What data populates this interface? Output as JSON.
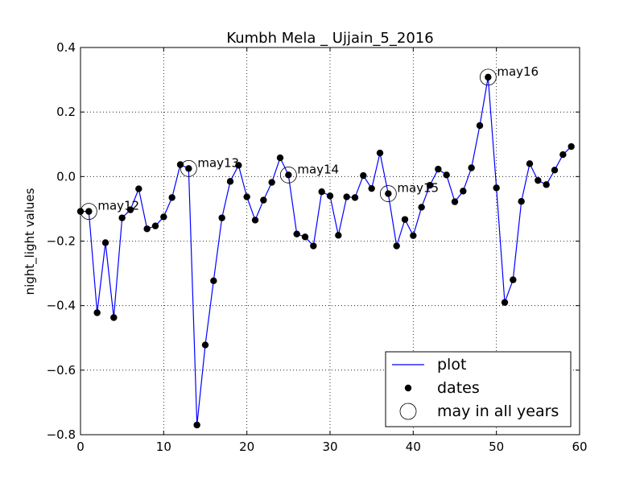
{
  "chart_data": {
    "type": "line",
    "title": "Kumbh Mela _ Ujjain_5_2016",
    "xlabel": "",
    "ylabel": "night_light values",
    "xlim": [
      0,
      60
    ],
    "ylim": [
      -0.8,
      0.4
    ],
    "xticks": [
      0,
      10,
      20,
      30,
      40,
      50,
      60
    ],
    "xtick_labels": [
      "0",
      "10",
      "20",
      "30",
      "40",
      "50",
      "60"
    ],
    "yticks": [
      -0.8,
      -0.6,
      -0.4,
      -0.2,
      0.0,
      0.2,
      0.4
    ],
    "ytick_labels": [
      "−0.8",
      "−0.6",
      "−0.4",
      "−0.2",
      "0.0",
      "0.2",
      "0.4"
    ],
    "grid": true,
    "grid_style": "dotted",
    "series": [
      {
        "name": "plot",
        "color": "#0000ff",
        "x": [
          0,
          1,
          2,
          3,
          4,
          5,
          6,
          7,
          8,
          9,
          10,
          11,
          12,
          13,
          14,
          15,
          16,
          17,
          18,
          19,
          20,
          21,
          22,
          23,
          24,
          25,
          26,
          27,
          28,
          29,
          30,
          31,
          32,
          33,
          34,
          35,
          36,
          37,
          38,
          39,
          40,
          41,
          42,
          43,
          44,
          45,
          46,
          47,
          48,
          49,
          50,
          51,
          52,
          53,
          54,
          55,
          56,
          57,
          58,
          59
        ],
        "y": [
          -0.108,
          -0.108,
          -0.422,
          -0.205,
          -0.437,
          -0.128,
          -0.103,
          -0.038,
          -0.162,
          -0.153,
          -0.125,
          -0.065,
          0.037,
          0.025,
          -0.77,
          -0.522,
          -0.323,
          -0.128,
          -0.015,
          0.035,
          -0.063,
          -0.135,
          -0.073,
          -0.018,
          0.058,
          0.005,
          -0.178,
          -0.187,
          -0.215,
          -0.047,
          -0.06,
          -0.182,
          -0.063,
          -0.065,
          0.003,
          -0.037,
          0.073,
          -0.053,
          -0.215,
          -0.133,
          -0.183,
          -0.095,
          -0.027,
          0.023,
          0.005,
          -0.078,
          -0.045,
          0.027,
          0.158,
          0.308,
          -0.035,
          -0.39,
          -0.32,
          -0.077,
          0.04,
          -0.012,
          -0.025,
          0.02,
          0.068,
          0.093
        ]
      }
    ],
    "marker_series_name": "dates",
    "marker_color": "#000000",
    "highlight_series_name": "may in all years",
    "highlights": [
      {
        "x": 1,
        "y": -0.108,
        "label": "may12"
      },
      {
        "x": 13,
        "y": 0.025,
        "label": "may13"
      },
      {
        "x": 25,
        "y": 0.005,
        "label": "may14"
      },
      {
        "x": 37,
        "y": -0.053,
        "label": "may15"
      },
      {
        "x": 49,
        "y": 0.308,
        "label": "may16"
      }
    ],
    "legend": {
      "placement": "lower-right",
      "entries": [
        "plot",
        "dates",
        "may in all years"
      ]
    }
  }
}
